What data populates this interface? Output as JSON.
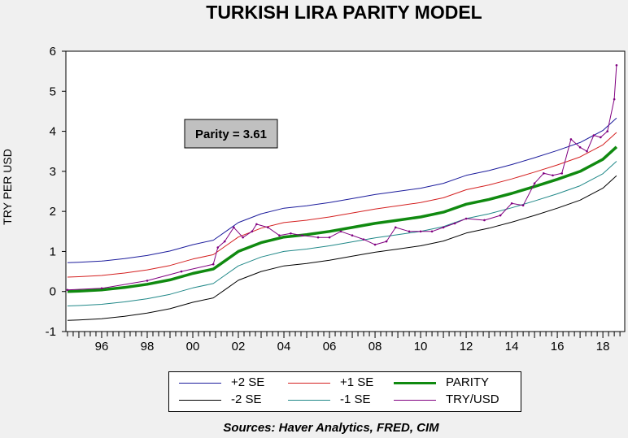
{
  "chart_data": {
    "type": "line",
    "title": "TURKISH LIRA PARITY MODEL",
    "xlabel": "",
    "ylabel": "TRY PER USD",
    "xlim": [
      1994.43,
      2018.96
    ],
    "ylim": [
      -1,
      6
    ],
    "yticks": [
      -1,
      0,
      1,
      2,
      3,
      4,
      5,
      6
    ],
    "xticks": [
      {
        "year": 1996,
        "label": "96"
      },
      {
        "year": 1998,
        "label": "98"
      },
      {
        "year": 2000,
        "label": "00"
      },
      {
        "year": 2002,
        "label": "02"
      },
      {
        "year": 2004,
        "label": "04"
      },
      {
        "year": 2006,
        "label": "06"
      },
      {
        "year": 2008,
        "label": "08"
      },
      {
        "year": 2010,
        "label": "10"
      },
      {
        "year": 2012,
        "label": "12"
      },
      {
        "year": 2014,
        "label": "14"
      },
      {
        "year": 2016,
        "label": "16"
      },
      {
        "year": 2018,
        "label": "18"
      }
    ],
    "grid": false,
    "annotation": "Parity = 3.61",
    "legend_placement": "bottom",
    "x": [
      1994.5,
      1995,
      1996,
      1997,
      1998,
      1999,
      2000,
      2000.9,
      2001.5,
      2002,
      2003,
      2004,
      2005,
      2006,
      2007,
      2008,
      2009,
      2010,
      2011,
      2012,
      2013,
      2014,
      2015,
      2016,
      2017,
      2017.5,
      2018,
      2018.6
    ],
    "series": [
      {
        "name": "+2 SE",
        "color": "#1c1c9c",
        "values": [
          0.72,
          0.73,
          0.76,
          0.82,
          0.9,
          1.01,
          1.17,
          1.28,
          1.52,
          1.72,
          1.94,
          2.08,
          2.14,
          2.22,
          2.32,
          2.42,
          2.5,
          2.58,
          2.7,
          2.9,
          3.02,
          3.17,
          3.34,
          3.52,
          3.72,
          3.87,
          4.02,
          4.33
        ]
      },
      {
        "name": "+1 SE",
        "color": "#d42020",
        "values": [
          0.36,
          0.37,
          0.4,
          0.46,
          0.54,
          0.65,
          0.81,
          0.92,
          1.16,
          1.36,
          1.58,
          1.72,
          1.78,
          1.86,
          1.96,
          2.06,
          2.14,
          2.22,
          2.34,
          2.54,
          2.66,
          2.81,
          2.98,
          3.16,
          3.36,
          3.51,
          3.66,
          3.97
        ]
      },
      {
        "name": "PARITY",
        "color": "#108a10",
        "values": [
          0.0,
          0.01,
          0.04,
          0.1,
          0.18,
          0.29,
          0.45,
          0.56,
          0.8,
          1.0,
          1.22,
          1.36,
          1.42,
          1.5,
          1.6,
          1.7,
          1.78,
          1.86,
          1.98,
          2.18,
          2.3,
          2.45,
          2.62,
          2.8,
          3.0,
          3.15,
          3.3,
          3.61
        ]
      },
      {
        "name": "-2 SE",
        "color": "#000000",
        "values": [
          -0.72,
          -0.71,
          -0.68,
          -0.62,
          -0.54,
          -0.43,
          -0.27,
          -0.16,
          0.08,
          0.28,
          0.5,
          0.64,
          0.7,
          0.78,
          0.88,
          0.98,
          1.06,
          1.14,
          1.26,
          1.46,
          1.58,
          1.73,
          1.9,
          2.08,
          2.28,
          2.43,
          2.58,
          2.89
        ]
      },
      {
        "name": "-1 SE",
        "color": "#208888",
        "values": [
          -0.36,
          -0.35,
          -0.32,
          -0.26,
          -0.18,
          -0.07,
          0.09,
          0.2,
          0.44,
          0.64,
          0.86,
          1.0,
          1.06,
          1.14,
          1.24,
          1.34,
          1.42,
          1.5,
          1.62,
          1.82,
          1.94,
          2.09,
          2.26,
          2.44,
          2.64,
          2.79,
          2.94,
          3.25
        ]
      },
      {
        "name": "TRY/USD",
        "color": "#800080",
        "x": [
          1994.5,
          1996,
          1998,
          1999.5,
          2000.9,
          2001.1,
          2001.4,
          2001.8,
          2002.2,
          2002.6,
          2002.8,
          2003.3,
          2003.8,
          2004.3,
          2004.8,
          2005.5,
          2006.0,
          2006.5,
          2007,
          2007.5,
          2008.0,
          2008.5,
          2008.9,
          2009.5,
          2010,
          2010.5,
          2011,
          2011.5,
          2012,
          2012.8,
          2013.5,
          2014,
          2014.5,
          2015,
          2015.4,
          2015.8,
          2016.2,
          2016.6,
          2017.0,
          2017.3,
          2017.6,
          2017.9,
          2018.2,
          2018.5,
          2018.6
        ],
        "values": [
          0.04,
          0.08,
          0.27,
          0.5,
          0.68,
          1.1,
          1.25,
          1.6,
          1.35,
          1.5,
          1.68,
          1.6,
          1.4,
          1.45,
          1.4,
          1.35,
          1.35,
          1.5,
          1.4,
          1.3,
          1.17,
          1.25,
          1.6,
          1.5,
          1.5,
          1.5,
          1.6,
          1.7,
          1.82,
          1.78,
          1.9,
          2.2,
          2.15,
          2.7,
          2.95,
          2.9,
          2.95,
          3.8,
          3.6,
          3.5,
          3.9,
          3.85,
          4.0,
          4.8,
          5.65
        ]
      }
    ],
    "sources": "Sources:  Haver Analytics, FRED, CIM"
  }
}
